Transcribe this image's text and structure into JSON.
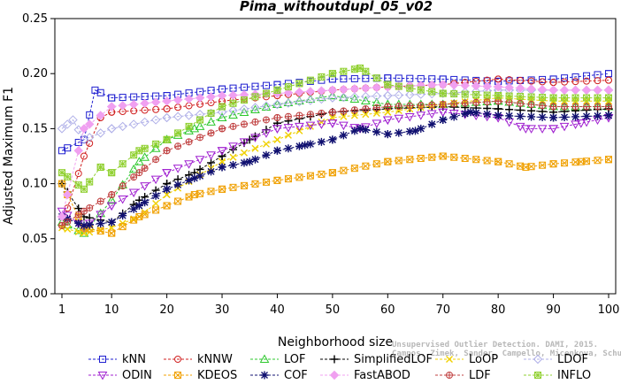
{
  "chart_data": {
    "type": "line",
    "title": "Pima_withoutdupl_05_v02",
    "xlabel": "Neighborhood size",
    "ylabel": "Adjusted Maximum F1",
    "xlim": [
      1,
      100
    ],
    "ylim": [
      0,
      0.25
    ],
    "x_ticks": [
      "1",
      "10",
      "20",
      "30",
      "40",
      "50",
      "60",
      "70",
      "80",
      "90",
      "100"
    ],
    "y_ticks": [
      "0.00",
      "0.05",
      "0.10",
      "0.15",
      "0.20",
      "0.25"
    ],
    "grid": false,
    "legend_position": "bottom",
    "watermark_lines": [
      "Unsupervised Outlier Detection. DAMI, 2015.",
      "Campos, Zimek, Sander, Campello, Micenkova, Schubert, Assent, Houle"
    ],
    "series": [
      {
        "name": "kNN",
        "color": "#1f1fd0",
        "marker": "square",
        "points": [
          [
            1,
            0.13
          ],
          [
            5,
            0.14
          ],
          [
            7,
            0.185
          ],
          [
            10,
            0.178
          ],
          [
            20,
            0.18
          ],
          [
            30,
            0.186
          ],
          [
            40,
            0.19
          ],
          [
            50,
            0.195
          ],
          [
            60,
            0.196
          ],
          [
            70,
            0.195
          ],
          [
            80,
            0.193
          ],
          [
            90,
            0.195
          ],
          [
            100,
            0.2
          ]
        ]
      },
      {
        "name": "kNNW",
        "color": "#d02020",
        "marker": "circle",
        "points": [
          [
            1,
            0.062
          ],
          [
            5,
            0.125
          ],
          [
            8,
            0.16
          ],
          [
            10,
            0.165
          ],
          [
            20,
            0.168
          ],
          [
            30,
            0.175
          ],
          [
            40,
            0.18
          ],
          [
            50,
            0.185
          ],
          [
            60,
            0.188
          ],
          [
            70,
            0.19
          ],
          [
            80,
            0.195
          ],
          [
            90,
            0.192
          ],
          [
            100,
            0.194
          ]
        ]
      },
      {
        "name": "LOF",
        "color": "#2ec82e",
        "marker": "triangle-up",
        "points": [
          [
            1,
            0.065
          ],
          [
            5,
            0.055
          ],
          [
            10,
            0.085
          ],
          [
            15,
            0.12
          ],
          [
            20,
            0.14
          ],
          [
            25,
            0.15
          ],
          [
            30,
            0.16
          ],
          [
            40,
            0.172
          ],
          [
            50,
            0.18
          ],
          [
            60,
            0.172
          ],
          [
            70,
            0.172
          ],
          [
            80,
            0.175
          ],
          [
            90,
            0.17
          ],
          [
            100,
            0.17
          ]
        ]
      },
      {
        "name": "SimplifiedLOF",
        "color": "#000000",
        "marker": "plus",
        "points": [
          [
            1,
            0.1
          ],
          [
            5,
            0.07
          ],
          [
            10,
            0.065
          ],
          [
            15,
            0.085
          ],
          [
            20,
            0.1
          ],
          [
            25,
            0.11
          ],
          [
            30,
            0.125
          ],
          [
            35,
            0.14
          ],
          [
            40,
            0.155
          ],
          [
            50,
            0.165
          ],
          [
            60,
            0.168
          ],
          [
            70,
            0.17
          ],
          [
            80,
            0.168
          ],
          [
            90,
            0.165
          ],
          [
            100,
            0.168
          ]
        ]
      },
      {
        "name": "LoOP",
        "color": "#f0d000",
        "marker": "x",
        "points": [
          [
            1,
            0.06
          ],
          [
            5,
            0.055
          ],
          [
            10,
            0.06
          ],
          [
            15,
            0.07
          ],
          [
            20,
            0.09
          ],
          [
            30,
            0.12
          ],
          [
            40,
            0.14
          ],
          [
            50,
            0.16
          ],
          [
            60,
            0.165
          ],
          [
            70,
            0.172
          ],
          [
            80,
            0.178
          ],
          [
            90,
            0.175
          ],
          [
            100,
            0.175
          ]
        ]
      },
      {
        "name": "LDOF",
        "color": "#b0b0e8",
        "marker": "diamond",
        "points": [
          [
            1,
            0.15
          ],
          [
            3,
            0.158
          ],
          [
            5,
            0.14
          ],
          [
            10,
            0.15
          ],
          [
            20,
            0.16
          ],
          [
            30,
            0.165
          ],
          [
            40,
            0.172
          ],
          [
            50,
            0.178
          ],
          [
            60,
            0.18
          ],
          [
            70,
            0.182
          ],
          [
            80,
            0.185
          ],
          [
            90,
            0.185
          ],
          [
            100,
            0.185
          ]
        ]
      },
      {
        "name": "ODIN",
        "color": "#a020d0",
        "marker": "triangle-down",
        "points": [
          [
            1,
            0.075
          ],
          [
            5,
            0.06
          ],
          [
            10,
            0.08
          ],
          [
            20,
            0.11
          ],
          [
            30,
            0.13
          ],
          [
            40,
            0.15
          ],
          [
            50,
            0.155
          ],
          [
            55,
            0.15
          ],
          [
            60,
            0.158
          ],
          [
            70,
            0.165
          ],
          [
            80,
            0.16
          ],
          [
            85,
            0.15
          ],
          [
            90,
            0.15
          ],
          [
            95,
            0.155
          ],
          [
            100,
            0.16
          ]
        ]
      },
      {
        "name": "KDEOS",
        "color": "#f0a000",
        "marker": "square-x",
        "points": [
          [
            1,
            0.1
          ],
          [
            5,
            0.06
          ],
          [
            10,
            0.055
          ],
          [
            15,
            0.07
          ],
          [
            20,
            0.08
          ],
          [
            25,
            0.09
          ],
          [
            30,
            0.095
          ],
          [
            40,
            0.103
          ],
          [
            50,
            0.11
          ],
          [
            60,
            0.12
          ],
          [
            70,
            0.125
          ],
          [
            80,
            0.12
          ],
          [
            85,
            0.115
          ],
          [
            90,
            0.118
          ],
          [
            95,
            0.12
          ],
          [
            100,
            0.122
          ]
        ]
      },
      {
        "name": "COF",
        "color": "#101070",
        "marker": "star",
        "points": [
          [
            1,
            0.07
          ],
          [
            5,
            0.062
          ],
          [
            10,
            0.065
          ],
          [
            15,
            0.08
          ],
          [
            20,
            0.095
          ],
          [
            25,
            0.105
          ],
          [
            30,
            0.115
          ],
          [
            35,
            0.12
          ],
          [
            40,
            0.13
          ],
          [
            45,
            0.135
          ],
          [
            50,
            0.14
          ],
          [
            55,
            0.15
          ],
          [
            60,
            0.145
          ],
          [
            65,
            0.148
          ],
          [
            70,
            0.158
          ],
          [
            75,
            0.165
          ],
          [
            80,
            0.162
          ],
          [
            90,
            0.16
          ],
          [
            100,
            0.162
          ]
        ]
      },
      {
        "name": "FastABOD",
        "color": "#f0a0f0",
        "marker": "diamond-filled",
        "points": [
          [
            1,
            0.07
          ],
          [
            5,
            0.15
          ],
          [
            10,
            0.17
          ],
          [
            20,
            0.175
          ],
          [
            30,
            0.18
          ],
          [
            40,
            0.182
          ],
          [
            50,
            0.185
          ],
          [
            60,
            0.188
          ],
          [
            70,
            0.19
          ],
          [
            80,
            0.188
          ],
          [
            90,
            0.185
          ],
          [
            100,
            0.185
          ]
        ]
      },
      {
        "name": "LDF",
        "color": "#c04040",
        "marker": "circle-plus",
        "points": [
          [
            1,
            0.062
          ],
          [
            5,
            0.075
          ],
          [
            10,
            0.09
          ],
          [
            15,
            0.11
          ],
          [
            20,
            0.13
          ],
          [
            30,
            0.15
          ],
          [
            40,
            0.16
          ],
          [
            50,
            0.165
          ],
          [
            60,
            0.17
          ],
          [
            70,
            0.172
          ],
          [
            80,
            0.175
          ],
          [
            90,
            0.17
          ],
          [
            100,
            0.17
          ]
        ]
      },
      {
        "name": "INFLO",
        "color": "#90d030",
        "marker": "square-star",
        "points": [
          [
            1,
            0.11
          ],
          [
            5,
            0.095
          ],
          [
            8,
            0.115
          ],
          [
            10,
            0.11
          ],
          [
            15,
            0.13
          ],
          [
            20,
            0.14
          ],
          [
            30,
            0.17
          ],
          [
            40,
            0.185
          ],
          [
            50,
            0.2
          ],
          [
            55,
            0.205
          ],
          [
            60,
            0.19
          ],
          [
            70,
            0.182
          ],
          [
            80,
            0.18
          ],
          [
            90,
            0.178
          ],
          [
            100,
            0.178
          ]
        ]
      }
    ]
  }
}
